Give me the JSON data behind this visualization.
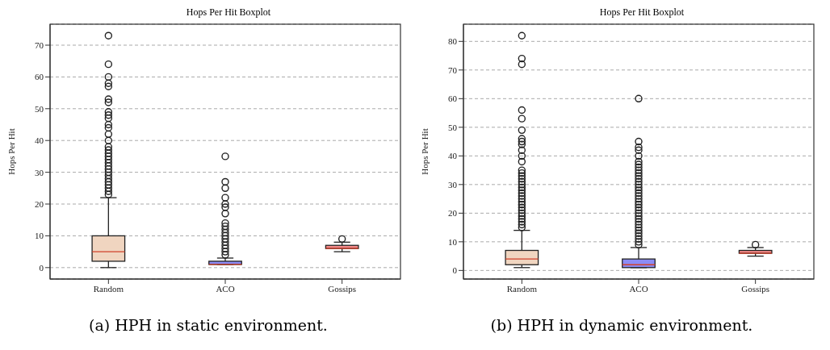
{
  "chart_data": [
    {
      "type": "box",
      "title": "Hops Per Hit Boxplot",
      "ylabel": "Hops Per Hit",
      "categories": [
        "Random",
        "ACO",
        "Gossips"
      ],
      "colors": [
        "#f0d5c0",
        "#8c8cf5",
        "#f58a8a"
      ],
      "ylim": [
        -3.6,
        76.6
      ],
      "yticks": [
        0,
        10,
        20,
        30,
        40,
        50,
        60,
        70
      ],
      "grid": "y",
      "annotations": [
        "(a) HPH in static environment."
      ],
      "boxes": [
        {
          "low": 0,
          "q1": 2,
          "median": 5,
          "q3": 10,
          "high": 22,
          "outliers": [
            23,
            24,
            25,
            26,
            27,
            28,
            29,
            30,
            31,
            32,
            33,
            34,
            35,
            36,
            37,
            38,
            40,
            42,
            44,
            45,
            47,
            48,
            49,
            52,
            53,
            57,
            58,
            60,
            64,
            73
          ]
        },
        {
          "low": 1,
          "q1": 1,
          "median": 1,
          "q3": 2,
          "high": 3,
          "outliers": [
            4,
            5,
            6,
            7,
            8,
            9,
            10,
            11,
            12,
            13,
            14,
            17,
            19,
            20,
            22,
            25,
            27,
            35
          ]
        },
        {
          "low": 5,
          "q1": 6,
          "median": 6,
          "q3": 7,
          "high": 8,
          "outliers": [
            9
          ]
        }
      ]
    },
    {
      "type": "box",
      "title": "Hops Per Hit Boxplot",
      "ylabel": "Hops Per Hit",
      "categories": [
        "Random",
        "ACO",
        "Gossips"
      ],
      "colors": [
        "#f0d5c0",
        "#8c8cf5",
        "#f58a8a"
      ],
      "ylim": [
        -3,
        86
      ],
      "yticks": [
        0,
        10,
        20,
        30,
        40,
        50,
        60,
        70,
        80
      ],
      "grid": "y",
      "annotations": [
        "(b) HPH in dynamic environment."
      ],
      "boxes": [
        {
          "low": 1,
          "q1": 2,
          "median": 4,
          "q3": 7,
          "high": 14,
          "outliers": [
            15,
            16,
            17,
            18,
            19,
            20,
            21,
            22,
            23,
            24,
            25,
            26,
            27,
            28,
            29,
            30,
            31,
            32,
            33,
            34,
            35,
            38,
            40,
            42,
            44,
            45,
            46,
            49,
            53,
            56,
            72,
            74,
            82
          ]
        },
        {
          "low": 1,
          "q1": 1,
          "median": 2,
          "q3": 4,
          "high": 8,
          "outliers": [
            9,
            10,
            11,
            12,
            13,
            14,
            15,
            16,
            17,
            18,
            19,
            20,
            21,
            22,
            23,
            24,
            25,
            26,
            27,
            28,
            29,
            30,
            31,
            32,
            33,
            34,
            35,
            36,
            37,
            38,
            40,
            42,
            43,
            45,
            60
          ]
        },
        {
          "low": 5,
          "q1": 6,
          "median": 6,
          "q3": 7,
          "high": 8,
          "outliers": [
            9
          ]
        }
      ]
    }
  ]
}
